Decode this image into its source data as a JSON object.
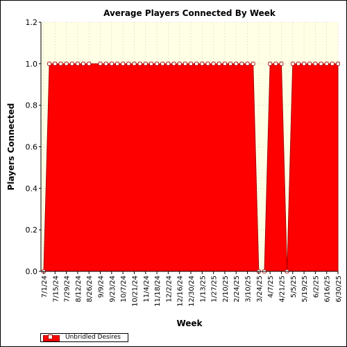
{
  "chart_data": {
    "type": "area",
    "title": "Average Players Connected By Week",
    "xlabel": "Week",
    "ylabel": "Players Connected",
    "ylim": [
      0,
      1.2
    ],
    "yticks": [
      "0.0",
      "0.2",
      "0.4",
      "0.6",
      "0.8",
      "1.0",
      "1.2"
    ],
    "xticks": [
      "7/1/24",
      "7/15/24",
      "7/29/24",
      "8/12/24",
      "8/26/24",
      "9/9/24",
      "9/23/24",
      "10/7/24",
      "10/21/24",
      "11/4/24",
      "11/18/24",
      "12/2/24",
      "12/16/24",
      "12/30/24",
      "1/13/25",
      "1/27/25",
      "2/10/25",
      "2/24/25",
      "3/10/25",
      "3/24/25",
      "4/7/25",
      "4/21/25",
      "5/5/25",
      "5/19/25",
      "6/2/25",
      "6/16/25",
      "6/30/25"
    ],
    "grid": true,
    "legend_position": "bottom-left",
    "x": [
      "7/1/24",
      "7/8/24",
      "7/15/24",
      "7/22/24",
      "7/29/24",
      "8/5/24",
      "8/12/24",
      "8/19/24",
      "8/26/24",
      "9/2/24",
      "9/9/24",
      "9/16/24",
      "9/23/24",
      "9/30/24",
      "10/7/24",
      "10/14/24",
      "10/21/24",
      "10/28/24",
      "11/4/24",
      "11/11/24",
      "11/18/24",
      "11/25/24",
      "12/2/24",
      "12/9/24",
      "12/16/24",
      "12/23/24",
      "12/30/24",
      "1/6/25",
      "1/13/25",
      "1/20/25",
      "1/27/25",
      "2/3/25",
      "2/10/25",
      "2/17/25",
      "2/24/25",
      "3/3/25",
      "3/10/25",
      "3/17/25",
      "3/24/25",
      "3/31/25",
      "4/7/25",
      "4/14/25",
      "4/21/25",
      "4/28/25",
      "5/5/25",
      "5/12/25",
      "5/19/25",
      "5/26/25",
      "6/2/25",
      "6/9/25",
      "6/16/25",
      "6/23/25",
      "6/30/25"
    ],
    "series": [
      {
        "name": "Unbridled Desires",
        "color": "#ff0000",
        "values": [
          0,
          1,
          1,
          1,
          1,
          1,
          1,
          1,
          1,
          null,
          1,
          1,
          1,
          1,
          1,
          1,
          1,
          1,
          1,
          1,
          1,
          1,
          1,
          1,
          1,
          1,
          1,
          1,
          1,
          1,
          1,
          1,
          1,
          1,
          1,
          1,
          1,
          1,
          0,
          0,
          1,
          1,
          1,
          0,
          1,
          1,
          1,
          1,
          1,
          1,
          1,
          1,
          1
        ]
      }
    ]
  },
  "legend": {
    "label": "Unbridled Desires"
  }
}
